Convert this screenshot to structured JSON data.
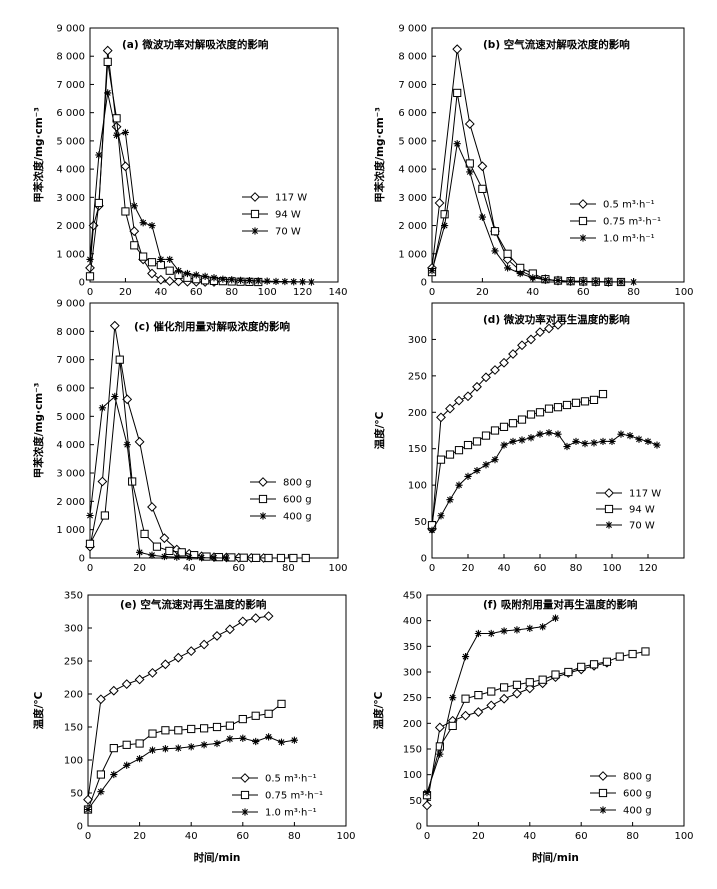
{
  "chart_data": [
    {
      "type": "line",
      "title": "(a) 微波功率对解吸浓度的影响",
      "xlabel": "",
      "ylabel": "甲苯浓度/mg·cm⁻³",
      "xlim": [
        0,
        140
      ],
      "ylim": [
        0,
        9000
      ],
      "xticks": [
        "0",
        "20",
        "40",
        "60",
        "80",
        "100",
        "120",
        "140"
      ],
      "yticks": [
        "0",
        "1 000",
        "2 000",
        "3 000",
        "4 000",
        "5 000",
        "6 000",
        "7 000",
        "8 000",
        "9 000"
      ],
      "legend_position": "right",
      "series": [
        {
          "name": "117 W",
          "marker": "diamond",
          "x": [
            0,
            2,
            5,
            10,
            15,
            20,
            25,
            30,
            35,
            40,
            45,
            50,
            55,
            60,
            65,
            70
          ],
          "y": [
            500,
            2000,
            2700,
            8200,
            5500,
            4100,
            1800,
            800,
            300,
            80,
            30,
            20,
            10,
            5,
            0,
            0
          ]
        },
        {
          "name": "94 W",
          "marker": "square",
          "x": [
            0,
            5,
            10,
            15,
            20,
            25,
            30,
            35,
            40,
            45,
            50,
            55,
            60,
            65,
            70,
            75,
            80,
            85,
            90,
            95
          ],
          "y": [
            200,
            2800,
            7800,
            5800,
            2500,
            1300,
            900,
            700,
            600,
            400,
            250,
            150,
            100,
            60,
            40,
            30,
            20,
            10,
            5,
            0
          ]
        },
        {
          "name": "70 W",
          "marker": "star",
          "x": [
            0,
            5,
            10,
            15,
            20,
            25,
            30,
            35,
            40,
            45,
            50,
            55,
            60,
            65,
            70,
            75,
            80,
            85,
            90,
            95,
            100,
            105,
            110,
            115,
            120,
            125
          ],
          "y": [
            800,
            4500,
            6700,
            5200,
            5300,
            2700,
            2100,
            2000,
            800,
            800,
            400,
            300,
            250,
            200,
            150,
            100,
            80,
            60,
            50,
            40,
            30,
            20,
            15,
            10,
            5,
            0
          ]
        }
      ]
    },
    {
      "type": "line",
      "title": "(b) 空气流速对解吸浓度的影响",
      "xlabel": "",
      "ylabel": "甲苯浓度/mg·cm⁻³",
      "xlim": [
        0,
        100
      ],
      "ylim": [
        0,
        9000
      ],
      "xticks": [
        "0",
        "20",
        "40",
        "60",
        "80",
        "100"
      ],
      "yticks": [
        "0",
        "1 000",
        "2 000",
        "3 000",
        "4 000",
        "5 000",
        "6 000",
        "7 000",
        "8 000",
        "9 000"
      ],
      "legend_position": "right",
      "series": [
        {
          "name": "0.5 m³·h⁻¹",
          "marker": "diamond",
          "x": [
            0,
            3,
            10,
            15,
            20,
            25,
            30,
            35,
            40,
            45,
            50,
            55,
            60,
            65,
            70
          ],
          "y": [
            500,
            2800,
            8250,
            5600,
            4100,
            1800,
            800,
            400,
            200,
            100,
            50,
            30,
            20,
            10,
            0
          ]
        },
        {
          "name": "0.75 m³·h⁻¹",
          "marker": "square",
          "x": [
            0,
            5,
            10,
            15,
            20,
            25,
            30,
            35,
            40,
            45,
            50,
            55,
            60,
            65,
            70,
            75
          ],
          "y": [
            350,
            2400,
            6700,
            4200,
            3300,
            1800,
            1000,
            500,
            300,
            100,
            50,
            30,
            20,
            10,
            5,
            0
          ]
        },
        {
          "name": "1.0 m³·h⁻¹",
          "marker": "star",
          "x": [
            0,
            5,
            10,
            15,
            20,
            25,
            30,
            35,
            40,
            45,
            50,
            55,
            60,
            65,
            70,
            75,
            80
          ],
          "y": [
            400,
            2000,
            4900,
            3900,
            2300,
            1100,
            500,
            300,
            150,
            80,
            50,
            30,
            20,
            10,
            5,
            2,
            0
          ]
        }
      ]
    },
    {
      "type": "line",
      "title": "(c) 催化剂用量对解吸浓度的影响",
      "xlabel": "",
      "ylabel": "甲苯浓度/mg·cm⁻³",
      "xlim": [
        0,
        100
      ],
      "ylim": [
        0,
        9000
      ],
      "xticks": [
        "0",
        "20",
        "40",
        "60",
        "80",
        "100"
      ],
      "yticks": [
        "0",
        "1 000",
        "2 000",
        "3 000",
        "4 000",
        "5 000",
        "6 000",
        "7 000",
        "8 000",
        "9 000"
      ],
      "legend_position": "right",
      "series": [
        {
          "name": "800 g",
          "marker": "diamond",
          "x": [
            0,
            5,
            10,
            15,
            20,
            25,
            30,
            35,
            40,
            45,
            50,
            55,
            60,
            65,
            70
          ],
          "y": [
            400,
            2700,
            8200,
            5600,
            4100,
            1800,
            700,
            300,
            150,
            60,
            30,
            20,
            10,
            5,
            0
          ]
        },
        {
          "name": "600 g",
          "marker": "square",
          "x": [
            0,
            6,
            12,
            17,
            22,
            27,
            32,
            37,
            42,
            47,
            52,
            57,
            62,
            67,
            72,
            77,
            82,
            87
          ],
          "y": [
            500,
            1500,
            7000,
            2700,
            850,
            400,
            250,
            200,
            100,
            50,
            30,
            20,
            10,
            5,
            0,
            0,
            0,
            0
          ]
        },
        {
          "name": "400 g",
          "marker": "star",
          "x": [
            0,
            5,
            10,
            15,
            20,
            25,
            30,
            35,
            40,
            45,
            50,
            55
          ],
          "y": [
            1500,
            5300,
            5700,
            4000,
            200,
            100,
            50,
            30,
            20,
            10,
            5,
            0
          ]
        }
      ]
    },
    {
      "type": "line",
      "title": "(d) 微波功率对再生温度的影响",
      "xlabel": "",
      "ylabel": "温度/°C",
      "xlim": [
        0,
        140
      ],
      "ylim": [
        0,
        350
      ],
      "xticks": [
        "0",
        "20",
        "40",
        "60",
        "80",
        "100",
        "120"
      ],
      "yticks": [
        "0",
        "50",
        "100",
        "150",
        "200",
        "250",
        "300"
      ],
      "legend_position": "bottom-left",
      "series": [
        {
          "name": "117 W",
          "marker": "diamond",
          "x": [
            0,
            5,
            10,
            15,
            20,
            25,
            30,
            35,
            40,
            45,
            50,
            55,
            60,
            65,
            70
          ],
          "y": [
            40,
            193,
            205,
            216,
            222,
            235,
            248,
            258,
            268,
            280,
            292,
            300,
            310,
            315,
            320
          ]
        },
        {
          "name": "94 W",
          "marker": "square",
          "x": [
            0,
            5,
            10,
            15,
            20,
            25,
            30,
            35,
            40,
            45,
            50,
            55,
            60,
            65,
            70,
            75,
            80,
            85,
            90,
            95
          ],
          "y": [
            45,
            135,
            142,
            148,
            155,
            160,
            168,
            175,
            180,
            185,
            190,
            197,
            200,
            205,
            207,
            210,
            213,
            215,
            217,
            225
          ]
        },
        {
          "name": "70 W",
          "marker": "star",
          "x": [
            0,
            5,
            10,
            15,
            20,
            25,
            30,
            35,
            40,
            45,
            50,
            55,
            60,
            65,
            70,
            75,
            80,
            85,
            90,
            95,
            100,
            105,
            110,
            115,
            120,
            125
          ],
          "y": [
            38,
            58,
            80,
            100,
            112,
            120,
            128,
            135,
            155,
            160,
            162,
            165,
            170,
            172,
            170,
            153,
            160,
            157,
            158,
            160,
            160,
            170,
            168,
            163,
            160,
            155
          ]
        }
      ]
    },
    {
      "type": "line",
      "title": "(e) 空气流速对再生温度的影响",
      "xlabel": "时间/min",
      "ylabel": "温度/°C",
      "xlim": [
        0,
        100
      ],
      "ylim": [
        0,
        350
      ],
      "xticks": [
        "0",
        "20",
        "40",
        "60",
        "80",
        "100"
      ],
      "yticks": [
        "0",
        "50",
        "100",
        "150",
        "200",
        "250",
        "300",
        "350"
      ],
      "legend_position": "bottom-right",
      "series": [
        {
          "name": "0.5 m³·h⁻¹",
          "marker": "diamond",
          "x": [
            0,
            5,
            10,
            15,
            20,
            25,
            30,
            35,
            40,
            45,
            50,
            55,
            60,
            65,
            70
          ],
          "y": [
            40,
            192,
            205,
            215,
            222,
            232,
            245,
            255,
            265,
            275,
            288,
            298,
            310,
            315,
            318
          ]
        },
        {
          "name": "0.75 m³·h⁻¹",
          "marker": "square",
          "x": [
            0,
            5,
            10,
            15,
            20,
            25,
            30,
            35,
            40,
            45,
            50,
            55,
            60,
            65,
            70,
            75
          ],
          "y": [
            25,
            78,
            118,
            123,
            125,
            140,
            145,
            145,
            147,
            148,
            150,
            152,
            162,
            167,
            170,
            185
          ]
        },
        {
          "name": "1.0 m³·h⁻¹",
          "marker": "star",
          "x": [
            0,
            5,
            10,
            15,
            20,
            25,
            30,
            35,
            40,
            45,
            50,
            55,
            60,
            65,
            70,
            75,
            80
          ],
          "y": [
            25,
            52,
            78,
            92,
            102,
            115,
            117,
            118,
            120,
            123,
            125,
            132,
            133,
            128,
            135,
            127,
            130
          ]
        }
      ]
    },
    {
      "type": "line",
      "title": "(f) 吸附剂用量对再生温度的影响",
      "xlabel": "时间/min",
      "ylabel": "温度/°C",
      "xlim": [
        0,
        100
      ],
      "ylim": [
        0,
        450
      ],
      "xticks": [
        "0",
        "20",
        "40",
        "60",
        "80",
        "100"
      ],
      "yticks": [
        "0",
        "50",
        "100",
        "150",
        "200",
        "250",
        "300",
        "350",
        "400",
        "450"
      ],
      "legend_position": "bottom-right",
      "series": [
        {
          "name": "800 g",
          "marker": "diamond",
          "x": [
            0,
            5,
            10,
            15,
            20,
            25,
            30,
            35,
            40,
            45,
            50,
            55,
            60,
            65,
            70
          ],
          "y": [
            40,
            192,
            205,
            215,
            222,
            235,
            248,
            258,
            268,
            278,
            290,
            298,
            305,
            312,
            318
          ]
        },
        {
          "name": "600 g",
          "marker": "square",
          "x": [
            0,
            5,
            10,
            15,
            20,
            25,
            30,
            35,
            40,
            45,
            50,
            55,
            60,
            65,
            70,
            75,
            80,
            85
          ],
          "y": [
            60,
            155,
            195,
            248,
            255,
            262,
            270,
            275,
            280,
            285,
            295,
            300,
            310,
            315,
            320,
            330,
            335,
            340
          ]
        },
        {
          "name": "400 g",
          "marker": "star",
          "x": [
            0,
            5,
            10,
            15,
            20,
            25,
            30,
            35,
            40,
            45,
            50
          ],
          "y": [
            65,
            140,
            250,
            330,
            375,
            375,
            380,
            382,
            385,
            388,
            405
          ]
        }
      ]
    }
  ]
}
